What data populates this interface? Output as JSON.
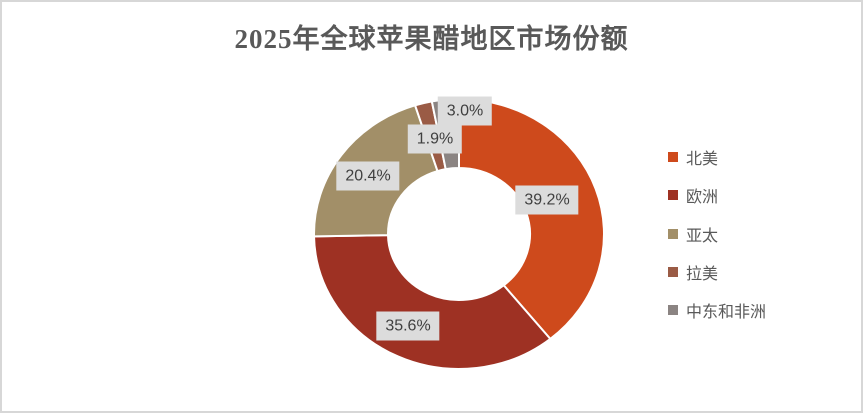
{
  "chart_data": {
    "type": "pie",
    "subtype": "donut",
    "title": "2025年全球苹果醋地区市场份额",
    "legend_position": "right",
    "start_angle_deg": 0,
    "direction": "clockwise",
    "hole_ratio": 0.49,
    "label_box_bg": "#DCDCDC",
    "label_text_color": "#3F3F3F",
    "title_color": "#595959",
    "legend_text_color": "#595959",
    "frame_border_color": "#D7D7D7",
    "slices": [
      {
        "id": "north-america",
        "legend_label": "北美",
        "value": 39.2,
        "label": "39.2%",
        "color": "#CE4A1C"
      },
      {
        "id": "europe",
        "legend_label": "欧洲",
        "value": 35.6,
        "label": "35.6%",
        "color": "#9E3123"
      },
      {
        "id": "asia-pacific",
        "legend_label": "亚太",
        "value": 20.4,
        "label": "20.4%",
        "color": "#A28F68"
      },
      {
        "id": "latin-america",
        "legend_label": "拉美",
        "value": 1.9,
        "label": "1.9%",
        "color": "#9A5B45"
      },
      {
        "id": "middle-east-africa",
        "legend_label": "中东和非洲",
        "value": 3.0,
        "label": "3.0%",
        "color": "#8B8482"
      }
    ]
  }
}
